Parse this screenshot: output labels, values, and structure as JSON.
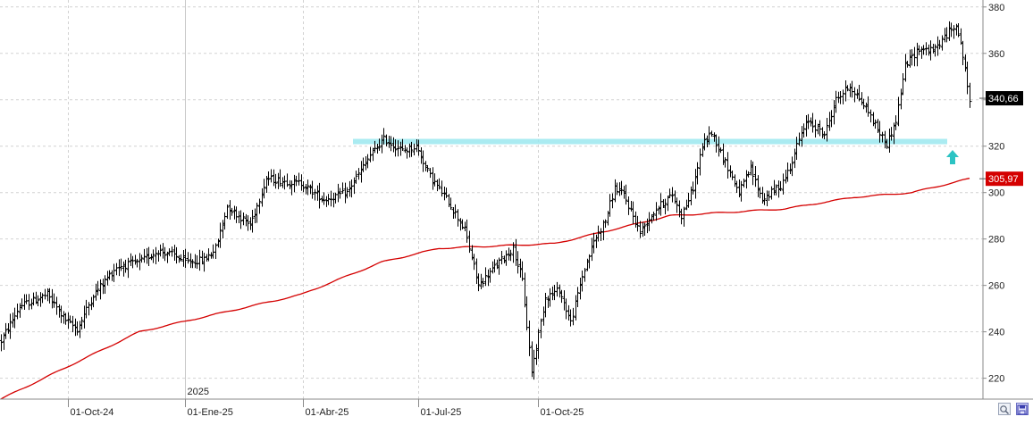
{
  "chart_data": {
    "type": "bar",
    "subtype": "ohlc",
    "x_ticks": [
      "01-Oct-24",
      "01-Ene-25",
      "01-Abr-25",
      "01-Jul-25",
      "01-Oct-25"
    ],
    "year_marker": "2025",
    "y_ticks": [
      "380",
      "360",
      "340",
      "320",
      "300",
      "280",
      "260",
      "240",
      "220"
    ],
    "ylim": [
      211,
      383
    ],
    "grid": true,
    "series": [
      {
        "kind": "price",
        "color": "#000000",
        "last_label": "340,66",
        "last_value": 340.66,
        "anchors": [
          [
            0,
            236
          ],
          [
            8,
            251
          ],
          [
            20,
            256
          ],
          [
            28,
            245
          ],
          [
            33,
            241
          ],
          [
            40,
            256
          ],
          [
            50,
            268
          ],
          [
            60,
            270
          ],
          [
            68,
            275
          ],
          [
            75,
            273
          ],
          [
            80,
            270
          ],
          [
            88,
            271
          ],
          [
            93,
            276
          ],
          [
            98,
            294
          ],
          [
            108,
            286
          ],
          [
            115,
            306
          ],
          [
            130,
            304
          ],
          [
            140,
            297
          ],
          [
            150,
            300
          ],
          [
            160,
            316
          ],
          [
            166,
            323
          ],
          [
            174,
            318
          ],
          [
            180,
            320
          ],
          [
            186,
            307
          ],
          [
            194,
            296
          ],
          [
            201,
            284
          ],
          [
            207,
            260
          ],
          [
            215,
            269
          ],
          [
            222,
            276
          ],
          [
            226,
            262
          ],
          [
            230,
            223
          ],
          [
            236,
            255
          ],
          [
            242,
            258
          ],
          [
            247,
            244
          ],
          [
            252,
            264
          ],
          [
            257,
            279
          ],
          [
            262,
            288
          ],
          [
            266,
            302
          ],
          [
            270,
            299
          ],
          [
            277,
            283
          ],
          [
            284,
            293
          ],
          [
            291,
            299
          ],
          [
            295,
            290
          ],
          [
            300,
            302
          ],
          [
            304,
            320
          ],
          [
            308,
            326
          ],
          [
            314,
            313
          ],
          [
            320,
            300
          ],
          [
            325,
            310
          ],
          [
            330,
            297
          ],
          [
            338,
            303
          ],
          [
            342,
            311
          ],
          [
            346,
            323
          ],
          [
            350,
            331
          ],
          [
            357,
            325
          ],
          [
            362,
            340
          ],
          [
            368,
            346
          ],
          [
            376,
            335
          ],
          [
            380,
            327
          ],
          [
            384,
            321
          ],
          [
            388,
            331
          ],
          [
            392,
            355
          ],
          [
            398,
            362
          ],
          [
            404,
            361
          ],
          [
            410,
            368
          ],
          [
            414,
            373
          ],
          [
            418,
            354
          ],
          [
            420,
            338
          ]
        ]
      },
      {
        "kind": "moving-average",
        "color": "#d40000",
        "last_label": "305,97",
        "last_value": 305.97,
        "anchors": [
          [
            0,
            211
          ],
          [
            60,
            240
          ],
          [
            130,
            256
          ],
          [
            165,
            270
          ],
          [
            190,
            276
          ],
          [
            240,
            278
          ],
          [
            290,
            290
          ],
          [
            340,
            293
          ],
          [
            370,
            298
          ],
          [
            395,
            300
          ],
          [
            420,
            306
          ]
        ]
      }
    ],
    "annotations": [
      {
        "kind": "support-zone",
        "value": 322,
        "color": "#9be8ee"
      },
      {
        "kind": "arrow-up",
        "color": "#2cc3c3"
      }
    ]
  },
  "controls": {
    "zoom_icon": "magnifier-icon",
    "save_icon": "floppy-icon"
  }
}
